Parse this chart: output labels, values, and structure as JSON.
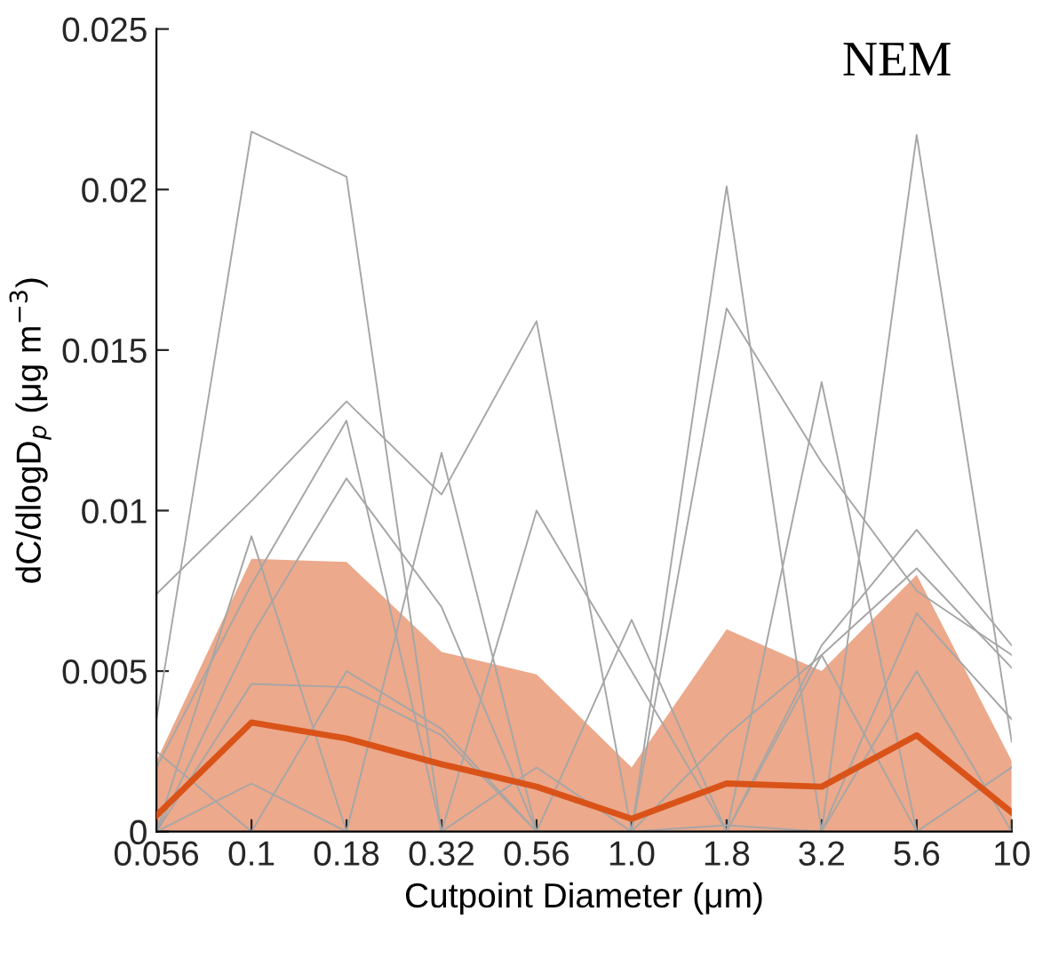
{
  "chart_data": {
    "type": "line",
    "xlabel": "Cutpoint Diameter (μm)",
    "ylabel": "dC/dlogD$_{p}$ (μg m$^{−3}$)",
    "annotations": [
      "NEM"
    ],
    "categories": [
      "0.056",
      "0.1",
      "0.18",
      "0.32",
      "0.56",
      "1.0",
      "1.8",
      "3.2",
      "5.6",
      "10"
    ],
    "ylim": [
      0,
      0.025
    ],
    "yticks": [
      0,
      0.005,
      0.01,
      0.015,
      0.02,
      0.025
    ],
    "grid": false,
    "marker": "none",
    "line_style": "solid",
    "series": [
      {
        "color": "#a6a6a6",
        "values": [
          0.0035,
          0.0218,
          0.0204,
          0.0,
          0.0,
          0.0,
          0.0201,
          0.0,
          0.0217,
          0.0028
        ]
      },
      {
        "color": "#a6a6a6",
        "values": [
          0.0074,
          0.0103,
          0.0134,
          0.0105,
          0.0159,
          0.0,
          0.0163,
          0.0115,
          0.0075,
          0.0055
        ]
      },
      {
        "color": "#a6a6a6",
        "values": [
          0.0,
          0.0092,
          0.0,
          0.0118,
          0.0,
          0.0066,
          0.0,
          0.014,
          0.0,
          0.0
        ]
      },
      {
        "color": "#a6a6a6",
        "values": [
          0.002,
          0.0077,
          0.0128,
          0.0,
          0.01,
          0.005,
          0.0,
          0.0058,
          0.0094,
          0.0058
        ]
      },
      {
        "color": "#a6a6a6",
        "values": [
          0.0,
          0.0061,
          0.011,
          0.007,
          0.0,
          0.0,
          0.003,
          0.0055,
          0.0082,
          0.0051
        ]
      },
      {
        "color": "#a6a6a6",
        "values": [
          0.0,
          0.0046,
          0.0045,
          0.003,
          0.0,
          0.0,
          0.0,
          0.0,
          0.0068,
          0.0035
        ]
      },
      {
        "color": "#a6a6a6",
        "values": [
          0.0,
          0.0015,
          0.0,
          0.0,
          0.002,
          0.0,
          0.0002,
          0.0,
          0.005,
          0.0
        ]
      },
      {
        "color": "#a6a6a6",
        "values": [
          0.0025,
          0.0,
          0.005,
          0.0032,
          0.0,
          0.0,
          0.0,
          0.0055,
          0.0,
          0.002
        ]
      },
      {
        "color": "#d95319",
        "values": [
          0.0005,
          0.0034,
          0.0029,
          0.0021,
          0.0014,
          0.0004,
          0.0015,
          0.0014,
          0.003,
          0.0006
        ],
        "lower": [
          0,
          0,
          0,
          0,
          0,
          0,
          0,
          0,
          0,
          0
        ],
        "upper": [
          0.0022,
          0.0085,
          0.0084,
          0.0056,
          0.0049,
          0.002,
          0.0063,
          0.005,
          0.008,
          0.0022
        ]
      }
    ]
  }
}
